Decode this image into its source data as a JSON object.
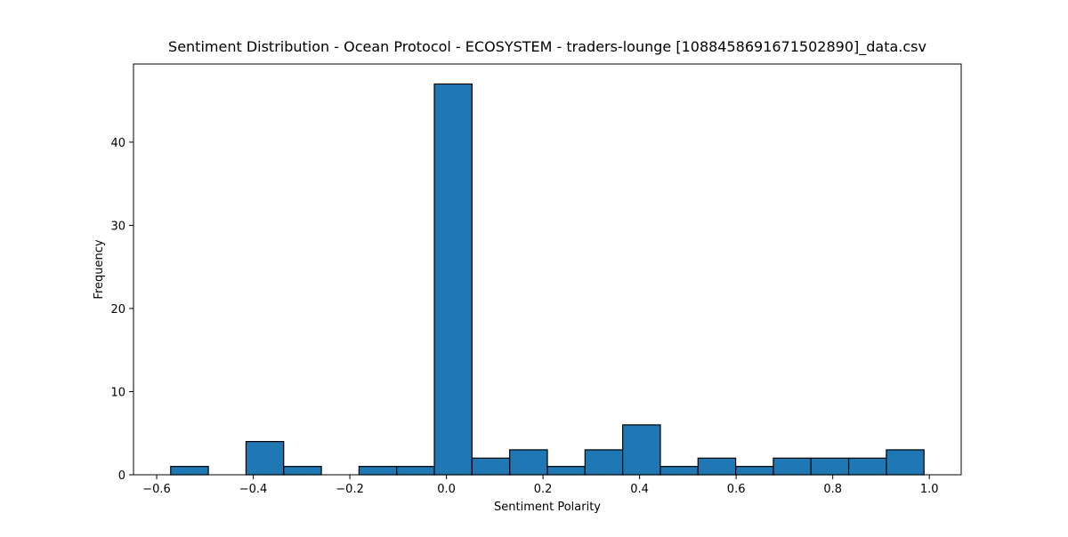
{
  "chart_data": {
    "type": "histogram",
    "title": "Sentiment Distribution - Ocean Protocol - ECOSYSTEM - traders-lounge [1088458691671502890]_data.csv",
    "x_label": "Sentiment Polarity",
    "y_label": "Frequency",
    "bins": [
      -0.571,
      -0.493,
      -0.415,
      -0.337,
      -0.259,
      -0.181,
      -0.103,
      -0.025,
      0.053,
      0.131,
      0.209,
      0.287,
      0.365,
      0.443,
      0.521,
      0.599,
      0.677,
      0.755,
      0.833,
      0.911,
      0.989
    ],
    "values": [
      1,
      0,
      4,
      1,
      0,
      1,
      1,
      47,
      2,
      3,
      1,
      3,
      6,
      1,
      2,
      1,
      2,
      2,
      2,
      3
    ],
    "color": "#1f77b4",
    "edge_color": "#000000",
    "xlim": [
      -0.648,
      1.066
    ],
    "ylim": [
      0,
      49.4
    ],
    "xticks": [
      {
        "value": -0.6,
        "label": "−0.6"
      },
      {
        "value": -0.4,
        "label": "−0.4"
      },
      {
        "value": -0.2,
        "label": "−0.2"
      },
      {
        "value": 0,
        "label": "0.0"
      },
      0.2,
      0.4,
      0.6,
      0.8,
      {
        "value": 1,
        "label": "1.0"
      }
    ],
    "yticks": [
      0,
      10,
      20,
      30,
      40
    ]
  }
}
